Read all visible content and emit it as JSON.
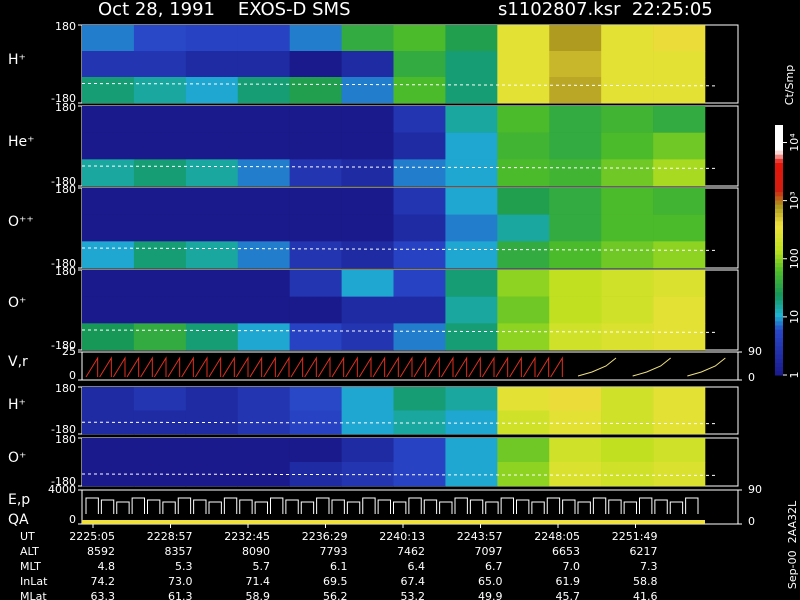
{
  "chart_data": {
    "type": "heatmap",
    "title": "Oct 28, 1991    EXOS-D SMS",
    "run": "s1102807.ksr  22:25:05",
    "colorbar": {
      "label": "Ct/Smp",
      "scale": "log",
      "lim": [
        1,
        20000
      ],
      "ticks": [
        1,
        10,
        100,
        {
          "value": 1000,
          "label": "10³"
        },
        {
          "value": 10000,
          "label": "10⁴"
        }
      ]
    },
    "panels": [
      {
        "label": "H⁺",
        "ylim": [
          -180,
          180
        ],
        "yticks": [
          180,
          -180
        ],
        "rows": [
          [
            8,
            6,
            5,
            5,
            8,
            40,
            60,
            30,
            300,
            800,
            300,
            400
          ],
          [
            3,
            3,
            2,
            2,
            1,
            2,
            40,
            20,
            300,
            600,
            300,
            300
          ],
          [
            20,
            15,
            10,
            20,
            30,
            8,
            60,
            20,
            300,
            700,
            300,
            300
          ]
        ]
      },
      {
        "label": "He⁺",
        "ylim": [
          -180,
          180
        ],
        "yticks": [
          180,
          -180
        ],
        "rows": [
          [
            1,
            1,
            1,
            1,
            1,
            1,
            3,
            15,
            60,
            40,
            50,
            40
          ],
          [
            1,
            1,
            1,
            1,
            1,
            1,
            2,
            10,
            50,
            40,
            60,
            80
          ],
          [
            15,
            20,
            15,
            8,
            3,
            2,
            8,
            10,
            60,
            50,
            80,
            120
          ]
        ]
      },
      {
        "label": "O⁺⁺",
        "ylim": [
          -180,
          180
        ],
        "yticks": [
          180,
          -180
        ],
        "rows": [
          [
            1,
            1,
            1,
            1,
            1,
            1,
            3,
            10,
            30,
            40,
            60,
            50
          ],
          [
            1,
            1,
            1,
            1,
            1,
            1,
            2,
            8,
            15,
            40,
            60,
            60
          ],
          [
            10,
            20,
            15,
            8,
            3,
            2,
            5,
            10,
            40,
            60,
            80,
            100
          ]
        ]
      },
      {
        "label": "O⁺",
        "ylim": [
          -180,
          180
        ],
        "yticks": [
          180,
          -180
        ],
        "rows": [
          [
            1,
            1,
            1,
            1,
            3,
            10,
            5,
            20,
            100,
            150,
            200,
            250
          ],
          [
            1,
            1,
            1,
            1,
            1,
            2,
            2,
            15,
            80,
            150,
            200,
            300
          ],
          [
            25,
            40,
            20,
            10,
            5,
            3,
            8,
            20,
            100,
            200,
            250,
            300
          ]
        ]
      },
      {
        "label": "H⁺",
        "ylim": [
          -180,
          180
        ],
        "yticks": [
          180,
          -180
        ],
        "rows": [
          [
            2,
            3,
            2,
            3,
            6,
            10,
            20,
            15,
            300,
            400,
            200,
            300
          ],
          [
            2,
            2,
            2,
            3,
            5,
            10,
            15,
            10,
            200,
            300,
            200,
            300
          ]
        ]
      },
      {
        "label": "O⁺",
        "ylim": [
          -180,
          180
        ],
        "yticks": [
          180,
          -180
        ],
        "rows": [
          [
            1,
            1,
            1,
            1,
            1,
            2,
            5,
            10,
            80,
            200,
            150,
            200
          ],
          [
            1,
            1,
            1,
            1,
            2,
            3,
            5,
            10,
            100,
            250,
            200,
            250
          ]
        ]
      }
    ],
    "line_panels": [
      {
        "label": "V,r",
        "ylim": [
          0,
          25
        ],
        "yticks": [
          25,
          0
        ],
        "y2lim": [
          0,
          90
        ],
        "y2ticks": [
          90,
          0
        ]
      },
      {
        "label": "E,p",
        "label2": "QA",
        "ylim": [
          0,
          4000
        ],
        "yticks": [
          4000,
          0
        ],
        "y2lim": [
          0,
          90
        ],
        "y2ticks": [
          90,
          0
        ]
      }
    ],
    "table": {
      "rows": [
        {
          "name": "UT",
          "cells": [
            "2225:05",
            "2228:57",
            "2232:45",
            "2236:29",
            "2240:13",
            "2243:57",
            "2248:05",
            "2251:49"
          ]
        },
        {
          "name": "ALT",
          "cells": [
            "8592",
            "8357",
            "8090",
            "7793",
            "7462",
            "7097",
            "6653",
            "6217"
          ]
        },
        {
          "name": "MLT",
          "cells": [
            "4.8",
            "5.3",
            "5.7",
            "6.1",
            "6.4",
            "6.7",
            "7.0",
            "7.3"
          ]
        },
        {
          "name": "InLat",
          "cells": [
            "74.2",
            "73.0",
            "71.4",
            "69.5",
            "67.4",
            "65.0",
            "61.9",
            "58.8"
          ]
        },
        {
          "name": "MLat",
          "cells": [
            "63.3",
            "61.3",
            "58.9",
            "56.2",
            "53.2",
            "49.9",
            "45.7",
            "41.6"
          ]
        }
      ]
    },
    "footer": "Sep-00  2AA32L"
  }
}
